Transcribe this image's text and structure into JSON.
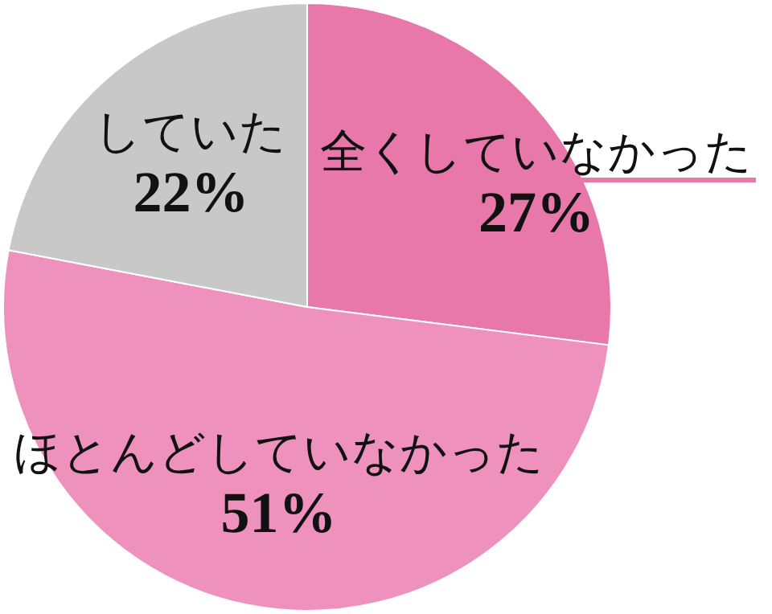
{
  "chart_data": {
    "type": "pie",
    "categories": [
      "全くしていなかった",
      "ほとんどしていなかった",
      "していた"
    ],
    "values": [
      27,
      51,
      22
    ],
    "colors": [
      "#e877aa",
      "#ee92bd",
      "#c8c8c8"
    ],
    "value_labels": [
      "27%",
      "51%",
      "22%"
    ]
  }
}
